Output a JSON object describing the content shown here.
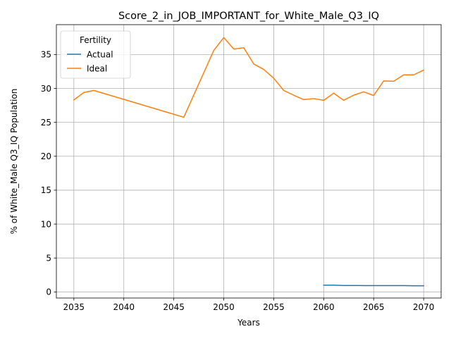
{
  "chart_data": {
    "type": "line",
    "title": "Score_2_in_JOB_IMPORTANT_for_White_Male_Q3_IQ",
    "xlabel": "Years",
    "ylabel": "% of White_Male Q3_IQ Population",
    "xlim": [
      2033.25,
      2071.75
    ],
    "ylim": [
      -0.9,
      39.4
    ],
    "xticks": [
      2035,
      2040,
      2045,
      2050,
      2055,
      2060,
      2065,
      2070
    ],
    "yticks": [
      0,
      5,
      10,
      15,
      20,
      25,
      30,
      35
    ],
    "grid": true,
    "legend": {
      "title": "Fertility",
      "placement": "top-left",
      "entries": [
        "Actual",
        "Ideal"
      ]
    },
    "series": [
      {
        "name": "Actual",
        "color": "#1f77b4",
        "x": [
          2060,
          2061,
          2062,
          2063,
          2064,
          2065,
          2066,
          2067,
          2068,
          2069,
          2070
        ],
        "y": [
          1.0,
          1.0,
          0.95,
          0.95,
          0.93,
          0.93,
          0.93,
          0.93,
          0.93,
          0.91,
          0.91
        ]
      },
      {
        "name": "Ideal",
        "color": "#ff7f0e",
        "x": [
          2035,
          2036,
          2037,
          2046,
          2049,
          2050,
          2051,
          2052,
          2053,
          2054,
          2055,
          2056,
          2057,
          2058,
          2059,
          2060,
          2061,
          2062,
          2063,
          2064,
          2065,
          2066,
          2067,
          2068,
          2069,
          2070
        ],
        "y": [
          28.3,
          29.4,
          29.7,
          25.75,
          35.6,
          37.5,
          35.8,
          36.0,
          33.6,
          32.8,
          31.5,
          29.7,
          29.0,
          28.35,
          28.5,
          28.25,
          29.3,
          28.25,
          29.0,
          29.5,
          28.95,
          31.1,
          31.05,
          32.0,
          32.0,
          32.7
        ]
      }
    ]
  }
}
